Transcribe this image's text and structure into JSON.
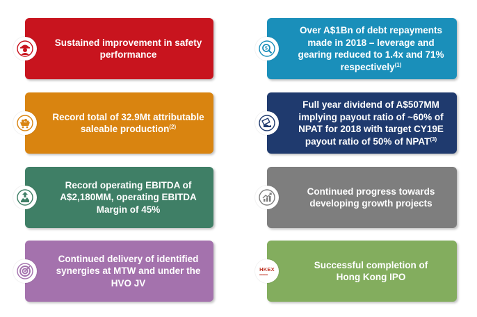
{
  "colors": {
    "red": "#c8141e",
    "orange": "#d98410",
    "green": "#3f7f66",
    "purple": "#a472ad",
    "blue": "#1a8fba",
    "navy": "#1f3a6e",
    "gray": "#7e7e7e",
    "lightgreen": "#83ad5e"
  },
  "left_cards": [
    {
      "icon": "safety-worker-icon",
      "lines": [
        "Sustained improvement in safety",
        "performance"
      ]
    },
    {
      "icon": "mine-cart-icon",
      "lines": [
        "Record total of 32.9Mt attributable",
        "saleable production"
      ],
      "sup": "(2)"
    },
    {
      "icon": "growth-money-icon",
      "lines": [
        "Record operating EBITDA of",
        "A$2,180MM, operating EBITDA",
        "Margin of 45%"
      ]
    },
    {
      "icon": "target-icon",
      "lines": [
        "Continued delivery of identified",
        "synergies at MTW and under the",
        "HVO JV"
      ]
    }
  ],
  "right_cards": [
    {
      "icon": "dollar-magnifier-icon",
      "lines": [
        "Over A$1Bn of debt repayments",
        "made in 2018 – leverage and",
        "gearing reduced to 1.4x and 71%",
        "respectively"
      ],
      "sup": "(1)"
    },
    {
      "icon": "handshake-money-icon",
      "lines": [
        "Full year dividend of A$507MM",
        "implying payout ratio of ~60% of",
        "NPAT for 2018 with target CY19E",
        "payout ratio of 50% of NPAT"
      ],
      "sup": "(3)"
    },
    {
      "icon": "growth-chart-icon",
      "lines": [
        "Continued progress towards",
        "developing growth projects"
      ]
    },
    {
      "icon": "hkex-logo-icon",
      "logo_text": "HKEX",
      "lines": [
        "Successful completion of",
        "Hong Kong IPO"
      ]
    }
  ]
}
